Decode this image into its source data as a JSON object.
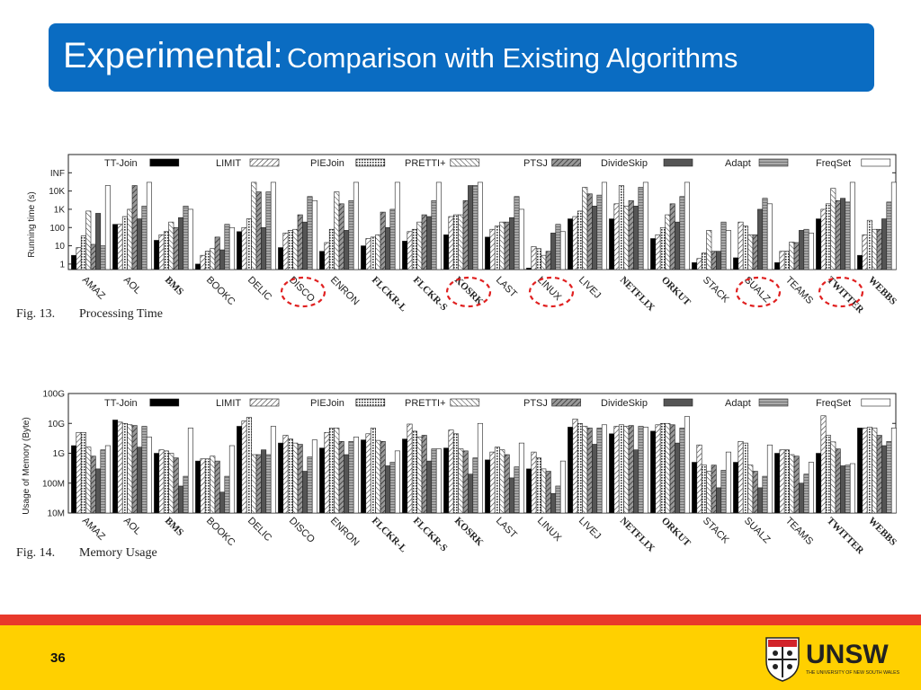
{
  "slide": {
    "title_main": "Experimental:",
    "title_sub": "Comparison with Existing Algorithms",
    "page_number": "36",
    "logo_text": "UNSW",
    "logo_subtext": "THE UNIVERSITY OF NEW SOUTH WALES",
    "accent_color": "#0a6cc2",
    "footer_colors": [
      "#e8392b",
      "#ffd000"
    ]
  },
  "chart_data": [
    {
      "type": "bar",
      "caption_num": "Fig. 13.",
      "caption_text": "Processing Time",
      "ylabel": "Running time (s)",
      "yscale": "log",
      "ylim": [
        0.5,
        1000000
      ],
      "yticks": [
        {
          "v": 1,
          "label": "1"
        },
        {
          "v": 10,
          "label": "10"
        },
        {
          "v": 100,
          "label": "100"
        },
        {
          "v": 1000,
          "label": "1K"
        },
        {
          "v": 10000,
          "label": "10K"
        },
        {
          "v": 100000,
          "label": "INF"
        }
      ],
      "legend_position": "top",
      "categories": [
        "AMAZ",
        "AOL",
        "BMS",
        "BOOKC",
        "DELIC",
        "DISCO",
        "ENRON",
        "FLCKR-L",
        "FLCKR-S",
        "KOSRK",
        "LAST",
        "LINUX",
        "LIVEJ",
        "NETFLIX",
        "ORKUT",
        "STACK",
        "SUALZ",
        "TEAMS",
        "TWITTER",
        "WEBBS"
      ],
      "bold_categories": [
        "BMS",
        "FLCKR-L",
        "FLCKR-S",
        "KOSRK",
        "NETFLIX",
        "ORKUT",
        "TWITTER",
        "WEBBS"
      ],
      "highlighted_categories": [
        "DISCO",
        "KOSRK",
        "LINUX",
        "SUALZ",
        "TWITTER"
      ],
      "series": [
        {
          "name": "TT-Join",
          "values": [
            3,
            150,
            20,
            1,
            60,
            8,
            5,
            10,
            18,
            40,
            30,
            0.6,
            300,
            300,
            25,
            1.2,
            2.2,
            1.2,
            300,
            3
          ]
        },
        {
          "name": "LIMIT",
          "values": [
            8,
            150,
            40,
            3,
            100,
            50,
            15,
            25,
            60,
            400,
            80,
            9,
            400,
            2000,
            40,
            2,
            200,
            5,
            1000,
            40
          ]
        },
        {
          "name": "PIEJoin",
          "values": [
            35,
            400,
            60,
            5,
            300,
            70,
            80,
            30,
            80,
            500,
            120,
            7,
            800,
            20000,
            100,
            4,
            120,
            5,
            2000,
            250
          ]
        },
        {
          "name": "PRETTI+",
          "values": [
            800,
            1000,
            200,
            7,
            30000,
            80,
            9000,
            40,
            200,
            500,
            200,
            3,
            16000,
            1500,
            500,
            70,
            40,
            16,
            14000,
            80
          ]
        },
        {
          "name": "PTSJ",
          "values": [
            12,
            20000,
            100,
            30,
            9000,
            500,
            2000,
            700,
            500,
            3000,
            200,
            5,
            7000,
            3000,
            2000,
            5,
            40,
            15,
            3000,
            80
          ]
        },
        {
          "name": "DivideSkip",
          "values": [
            600,
            300,
            350,
            6,
            100,
            200,
            70,
            100,
            400,
            20000,
            350,
            50,
            1500,
            1500,
            200,
            5,
            1000,
            70,
            4000,
            300
          ]
        },
        {
          "name": "Adapt",
          "values": [
            10,
            1500,
            1500,
            150,
            9000,
            5000,
            3000,
            1000,
            3000,
            20000,
            5000,
            150,
            6000,
            16000,
            5000,
            200,
            4000,
            80,
            2500,
            2500
          ]
        },
        {
          "name": "FreqSet",
          "values": [
            20000,
            30000,
            1000,
            100,
            30000,
            3000,
            30000,
            30000,
            30000,
            30000,
            1000,
            60,
            30000,
            30000,
            30000,
            70,
            2000,
            50,
            30000,
            30000
          ]
        }
      ]
    },
    {
      "type": "bar",
      "caption_num": "Fig. 14.",
      "caption_text": "Memory Usage",
      "ylabel": "Usage of Memory (Byte)",
      "yscale": "log",
      "ylim": [
        10000000,
        100000000000
      ],
      "yticks": [
        {
          "v": 10000000,
          "label": "10M"
        },
        {
          "v": 100000000,
          "label": "100M"
        },
        {
          "v": 1000000000,
          "label": "1G"
        },
        {
          "v": 10000000000,
          "label": "10G"
        },
        {
          "v": 100000000000,
          "label": "100G"
        }
      ],
      "legend_position": "top",
      "categories": [
        "AMAZ",
        "AOL",
        "BMS",
        "BOOKC",
        "DELIC",
        "DISCO",
        "ENRON",
        "FLCKR-L",
        "FLCKR-S",
        "KOSRK",
        "LAST",
        "LINUX",
        "LIVEJ",
        "NETFLIX",
        "ORKUT",
        "STACK",
        "SUALZ",
        "TEAMS",
        "TWITTER",
        "WEBBS"
      ],
      "bold_categories": [
        "BMS",
        "FLCKR-L",
        "FLCKR-S",
        "KOSRK",
        "NETFLIX",
        "ORKUT",
        "TWITTER",
        "WEBBS"
      ],
      "series": [
        {
          "name": "TT-Join",
          "values": [
            1800000000,
            13000000000,
            1000000000,
            550000000,
            8000000000,
            2200000000,
            1500000000,
            2800000000,
            3000000000,
            1500000000,
            600000000,
            300000000,
            7500000000,
            4500000000,
            5500000000,
            500000000,
            500000000,
            1000000000,
            1000000000,
            7000000000
          ]
        },
        {
          "name": "LIMIT",
          "values": [
            5000000000,
            11000000000,
            1300000000,
            650000000,
            12000000000,
            4000000000,
            5000000000,
            4500000000,
            9500000000,
            6000000000,
            1100000000,
            1100000000,
            14000000000,
            8000000000,
            9000000000,
            1900000000,
            2500000000,
            1300000000,
            18000000000,
            7000000000
          ]
        },
        {
          "name": "PIEJoin",
          "values": [
            5000000000,
            10000000000,
            1200000000,
            650000000,
            16000000000,
            3000000000,
            7000000000,
            7000000000,
            5500000000,
            4500000000,
            1600000000,
            700000000,
            10000000000,
            9000000000,
            10000000000,
            400000000,
            2200000000,
            1300000000,
            4000000000,
            7500000000
          ]
        },
        {
          "name": "PRETTI+",
          "values": [
            1600000000,
            9000000000,
            1000000000,
            800000000,
            900000000,
            2200000000,
            7000000000,
            2700000000,
            3500000000,
            1400000000,
            1300000000,
            300000000,
            8000000000,
            8000000000,
            10000000000,
            250000000,
            400000000,
            900000000,
            2400000000,
            7000000000
          ]
        },
        {
          "name": "PTSJ",
          "values": [
            800000000,
            8500000000,
            700000000,
            550000000,
            900000000,
            2000000000,
            2500000000,
            2500000000,
            4000000000,
            1200000000,
            900000000,
            250000000,
            7000000000,
            8500000000,
            9000000000,
            400000000,
            250000000,
            800000000,
            1400000000,
            4000000000
          ]
        },
        {
          "name": "DivideSkip",
          "values": [
            300000000,
            1600000000,
            80000000,
            50000000,
            1300000000,
            250000000,
            900000000,
            380000000,
            550000000,
            200000000,
            150000000,
            45000000,
            2000000000,
            1300000000,
            2200000000,
            70000000,
            70000000,
            100000000,
            380000000,
            1800000000
          ]
        },
        {
          "name": "Adapt",
          "values": [
            1300000000,
            8000000000,
            170000000,
            170000000,
            900000000,
            750000000,
            2500000000,
            500000000,
            1400000000,
            700000000,
            350000000,
            80000000,
            7000000000,
            8000000000,
            7000000000,
            270000000,
            170000000,
            200000000,
            400000000,
            2500000000
          ]
        },
        {
          "name": "FreqSet",
          "values": [
            1800000000,
            3500000000,
            7000000000,
            1800000000,
            8000000000,
            2800000000,
            3500000000,
            1200000000,
            1400000000,
            10000000000,
            2200000000,
            550000000,
            9000000000,
            7500000000,
            17000000000,
            1100000000,
            1900000000,
            500000000,
            450000000,
            7000000000
          ]
        }
      ]
    }
  ]
}
